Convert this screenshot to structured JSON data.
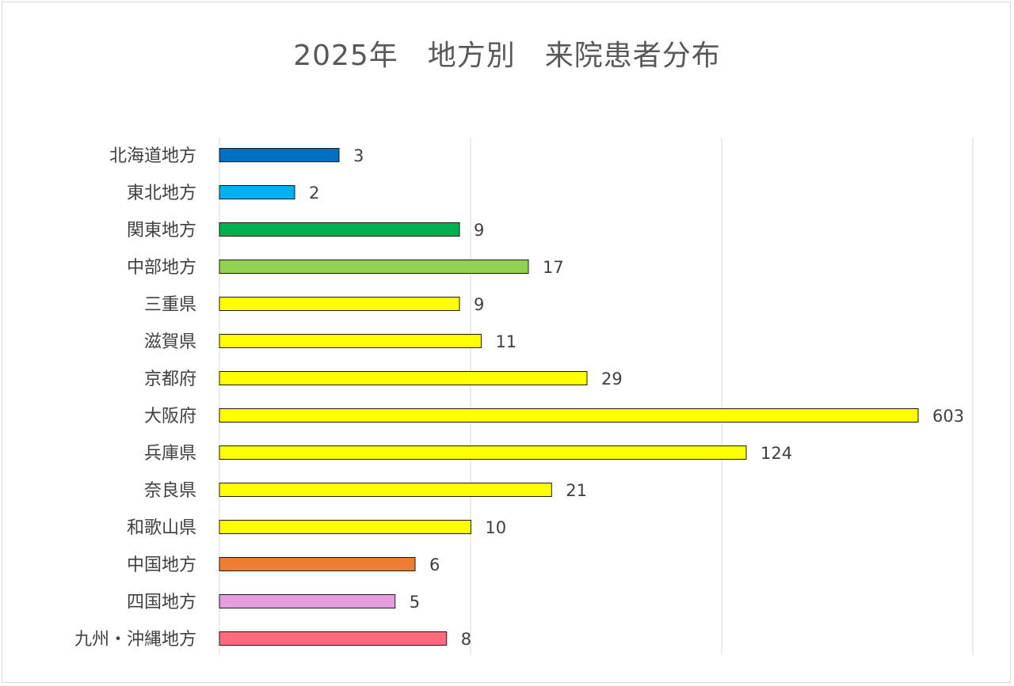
{
  "chart_data": {
    "type": "bar",
    "orientation": "horizontal",
    "title": "2025年　地方別　来院患者分布",
    "categories": [
      "北海道地方",
      "東北地方",
      "関東地方",
      "中部地方",
      "三重県",
      "滋賀県",
      "京都府",
      "大阪府",
      "兵庫県",
      "奈良県",
      "和歌山県",
      "中国地方",
      "四国地方",
      "九州・沖縄地方"
    ],
    "values": [
      3,
      2,
      9,
      17,
      9,
      11,
      29,
      603,
      124,
      21,
      10,
      6,
      5,
      8
    ],
    "colors": [
      "#0070C0",
      "#00B0F0",
      "#00B050",
      "#92D050",
      "#FFFF00",
      "#FFFF00",
      "#FFFF00",
      "#FFFF00",
      "#FFFF00",
      "#FFFF00",
      "#FFFF00",
      "#ED7D31",
      "#E59EDD",
      "#FF6B7E"
    ],
    "data_labels": [
      "3",
      "2",
      "9",
      "17",
      "9",
      "11",
      "29",
      "603",
      "124",
      "21",
      "10",
      "6",
      "5",
      "8"
    ],
    "axis_scale": "nonlinear",
    "gridlines": true,
    "legend": "none"
  }
}
